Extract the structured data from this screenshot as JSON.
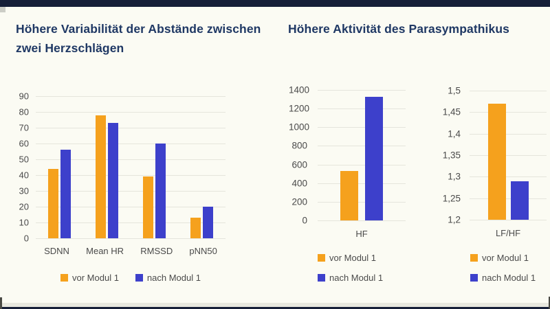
{
  "slide": {
    "titles": {
      "left": "Höhere Variabilität der Abstände zwischen zwei Herzschlägen",
      "right": "Höhere Aktivität des Parasympathikus"
    },
    "title_color": "#1f3864",
    "background": "#fbfbf3",
    "edge_bar_color": "#161f38"
  },
  "palette": {
    "vor": "#f5a11d",
    "nach": "#3d40cb",
    "grid": "#e5e5dc",
    "axis_text": "#4a4a4a"
  },
  "chart_data": [
    {
      "type": "bar",
      "title": "Höhere Variabilität der Abstände zwischen zwei Herzschlägen",
      "categories": [
        "SDNN",
        "Mean HR",
        "RMSSD",
        "pNN50"
      ],
      "series": [
        {
          "name": "vor Modul 1",
          "color_key": "vor",
          "values": [
            44,
            78,
            39,
            13
          ]
        },
        {
          "name": "nach Modul 1",
          "color_key": "nach",
          "values": [
            56,
            73,
            60,
            20
          ]
        }
      ],
      "ylim": [
        0,
        90
      ],
      "ytick_values": [
        0,
        10,
        20,
        30,
        40,
        50,
        60,
        70,
        80,
        90
      ],
      "ytick_labels": [
        "0",
        "10",
        "20",
        "30",
        "40",
        "50",
        "60",
        "70",
        "80",
        "90"
      ],
      "grid": true,
      "legend_position": "bottom-horizontal"
    },
    {
      "type": "bar",
      "title": "Höhere Aktivität des Parasympathikus",
      "categories": [
        "HF"
      ],
      "series": [
        {
          "name": "vor Modul 1",
          "color_key": "vor",
          "values": [
            530
          ]
        },
        {
          "name": "nach Modul 1",
          "color_key": "nach",
          "values": [
            1330
          ]
        }
      ],
      "ylim": [
        0,
        1400
      ],
      "ytick_values": [
        0,
        200,
        400,
        600,
        800,
        1000,
        1200,
        1400
      ],
      "ytick_labels": [
        "0",
        "200",
        "400",
        "600",
        "800",
        "1000",
        "1200",
        "1400"
      ],
      "grid": true,
      "legend_position": "bottom-vertical"
    },
    {
      "type": "bar",
      "title": "Höhere Aktivität des Parasympathikus",
      "categories": [
        "LF/HF"
      ],
      "series": [
        {
          "name": "vor Modul 1",
          "color_key": "vor",
          "values": [
            1.47
          ]
        },
        {
          "name": "nach Modul 1",
          "color_key": "nach",
          "values": [
            1.29
          ]
        }
      ],
      "ylim": [
        1.2,
        1.5
      ],
      "ytick_values": [
        1.2,
        1.25,
        1.3,
        1.35,
        1.4,
        1.45,
        1.5
      ],
      "ytick_labels": [
        "1,2",
        "1,25",
        "1,3",
        "1,35",
        "1,4",
        "1,45",
        "1,5"
      ],
      "grid": true,
      "legend_position": "bottom-vertical"
    }
  ]
}
